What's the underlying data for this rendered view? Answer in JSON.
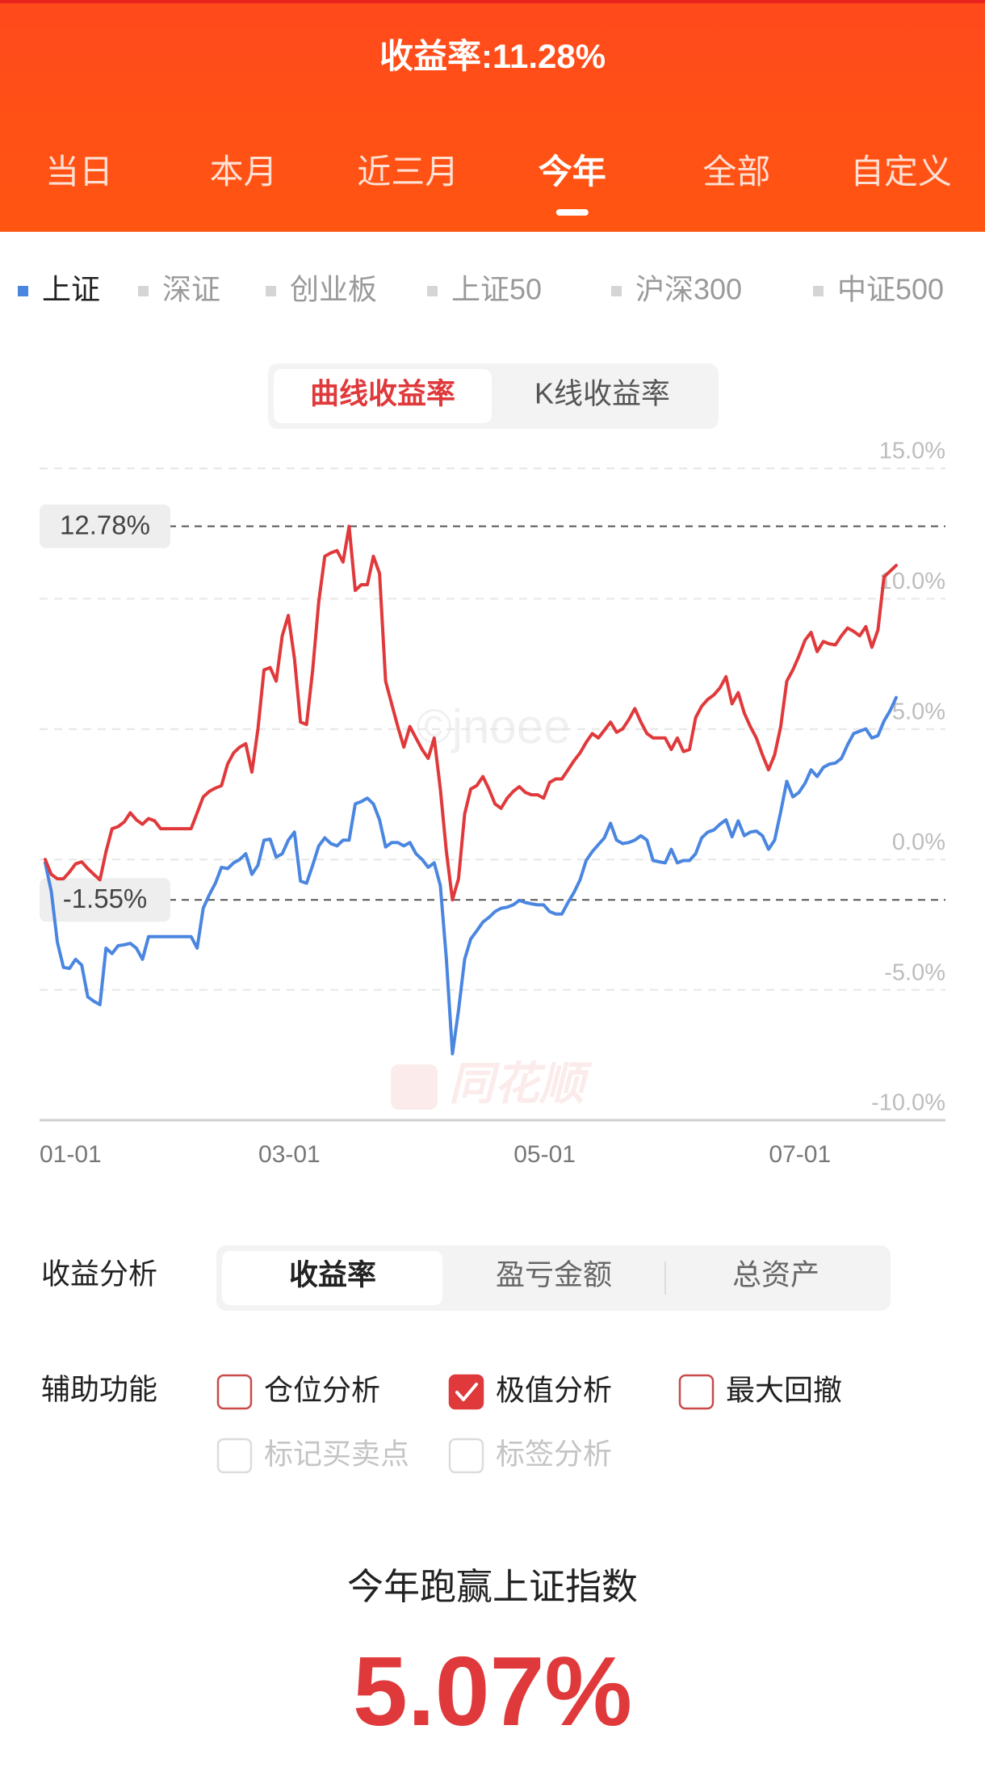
{
  "header": {
    "title": "收益率:11.28%",
    "tabs": [
      {
        "label": "当日",
        "active": false
      },
      {
        "label": "本月",
        "active": false
      },
      {
        "label": "近三月",
        "active": false
      },
      {
        "label": "今年",
        "active": true
      },
      {
        "label": "全部",
        "active": false
      },
      {
        "label": "自定义",
        "active": false
      }
    ]
  },
  "indices": [
    {
      "label": "上证",
      "active": true
    },
    {
      "label": "深证",
      "active": false
    },
    {
      "label": "创业板",
      "active": false
    },
    {
      "label": "上证50",
      "active": false
    },
    {
      "label": "沪深300",
      "active": false
    },
    {
      "label": "中证500",
      "active": false
    }
  ],
  "chart_mode": [
    {
      "label": "曲线收益率",
      "active": true
    },
    {
      "label": "K线收益率",
      "active": false
    }
  ],
  "watermarks": [
    "©jnoee",
    "同花顺"
  ],
  "chart_data": {
    "type": "line",
    "categories": [
      "01-01",
      null,
      null,
      null,
      null,
      null,
      null,
      null,
      null,
      null,
      null,
      null,
      null,
      null,
      null,
      null,
      null,
      null,
      null,
      null,
      null,
      null,
      null,
      null,
      null,
      null,
      null,
      null,
      null,
      null,
      null,
      null,
      null,
      null,
      null,
      null,
      "03-01",
      null,
      null,
      null,
      null,
      null,
      null,
      null,
      null,
      null,
      null,
      null,
      null,
      null,
      null,
      null,
      null,
      null,
      null,
      null,
      null,
      null,
      null,
      null,
      null,
      null,
      null,
      null,
      null,
      null,
      null,
      null,
      null,
      null,
      null,
      null,
      null,
      null,
      null,
      null,
      null,
      null,
      "05-01",
      null,
      null,
      null,
      null,
      null,
      null,
      null,
      null,
      null,
      null,
      null,
      null,
      null,
      null,
      null,
      null,
      null,
      null,
      null,
      null,
      null,
      null,
      null,
      null,
      null,
      null,
      null,
      null,
      null,
      null,
      null,
      null,
      null,
      null,
      null,
      null,
      null,
      null,
      null,
      null,
      null,
      "07-01",
      null,
      null,
      null,
      null,
      null,
      null,
      null,
      null,
      null,
      null,
      null,
      null,
      null,
      null,
      null,
      null,
      null,
      null,
      null,
      null
    ],
    "series": [
      {
        "color": "#e0393b",
        "values": [
          0,
          -0.57,
          -0.74,
          -0.74,
          -0.48,
          -0.17,
          -0.09,
          -0.35,
          -0.57,
          -0.78,
          0.3,
          1.18,
          1.26,
          1.44,
          1.79,
          1.52,
          1.35,
          1.57,
          1.48,
          1.18,
          1.18,
          1.18,
          1.18,
          1.18,
          1.18,
          1.79,
          2.4,
          2.61,
          2.74,
          2.83,
          3.66,
          4.09,
          4.31,
          4.44,
          3.35,
          5.01,
          7.27,
          7.36,
          6.84,
          8.58,
          9.36,
          7.71,
          5.27,
          5.18,
          7.27,
          9.89,
          11.63,
          11.76,
          11.85,
          11.41,
          12.78,
          10.32,
          10.54,
          10.54,
          11.63,
          10.97,
          6.84,
          5.97,
          5.1,
          4.31,
          5.1,
          4.66,
          4.22,
          3.88,
          4.66,
          2.7,
          0.3,
          -1.55,
          -0.74,
          1.74,
          2.7,
          2.83,
          3.18,
          2.7,
          2.13,
          1.96,
          2.35,
          2.61,
          2.79,
          2.57,
          2.48,
          2.48,
          2.35,
          2.96,
          3.09,
          3.09,
          3.44,
          3.79,
          4.09,
          4.49,
          4.83,
          4.66,
          4.96,
          5.27,
          4.88,
          5.01,
          5.36,
          5.79,
          5.27,
          4.83,
          4.66,
          4.66,
          4.66,
          4.22,
          4.66,
          4.14,
          4.22,
          5.44,
          5.88,
          6.14,
          6.31,
          6.58,
          7.01,
          5.97,
          6.4,
          5.62,
          5.1,
          4.66,
          4.01,
          3.44,
          4.01,
          5.1,
          6.84,
          7.27,
          7.8,
          8.41,
          8.71,
          7.97,
          8.36,
          8.27,
          8.23,
          8.58,
          8.88,
          8.75,
          8.58,
          8.93,
          8.14,
          8.8,
          10.84,
          11.06,
          11.28
        ]
      },
      {
        "color": "#4a86e0",
        "values": [
          -0.13,
          -1.22,
          -3.18,
          -4.14,
          -4.18,
          -3.83,
          -4.05,
          -5.27,
          -5.44,
          -5.57,
          -3.4,
          -3.61,
          -3.31,
          -3.27,
          -3.22,
          -3.4,
          -3.83,
          -2.96,
          -2.96,
          -2.96,
          -2.96,
          -2.96,
          -2.96,
          -2.96,
          -2.96,
          -3.4,
          -1.87,
          -1.35,
          -0.91,
          -0.3,
          -0.35,
          -0.13,
          0,
          0.22,
          -0.57,
          -0.22,
          0.74,
          0.78,
          0.09,
          0.22,
          0.74,
          1.05,
          -0.83,
          -0.91,
          -0.22,
          0.52,
          0.83,
          0.61,
          0.52,
          0.74,
          0.74,
          2.13,
          2.22,
          2.35,
          2.13,
          1.52,
          0.48,
          0.65,
          0.65,
          0.52,
          0.65,
          0.22,
          0,
          -0.3,
          -0.13,
          -1.0,
          -3.83,
          -7.45,
          -5.79,
          -3.83,
          -3.05,
          -2.74,
          -2.4,
          -2.22,
          -2.0,
          -1.87,
          -1.83,
          -1.74,
          -1.57,
          -1.65,
          -1.7,
          -1.74,
          -1.74,
          -2.0,
          -2.09,
          -2.09,
          -1.65,
          -1.26,
          -0.78,
          -0.04,
          0.3,
          0.57,
          0.83,
          1.39,
          0.74,
          0.61,
          0.65,
          0.74,
          0.91,
          0.74,
          -0.04,
          -0.09,
          -0.13,
          0.39,
          -0.13,
          -0.04,
          -0.04,
          0.22,
          0.83,
          1.05,
          1.13,
          1.35,
          1.52,
          0.87,
          1.48,
          0.91,
          1.05,
          1.09,
          0.91,
          0.39,
          0.74,
          1.83,
          3.0,
          2.4,
          2.57,
          2.92,
          3.44,
          3.18,
          3.53,
          3.66,
          3.7,
          3.88,
          4.4,
          4.83,
          4.92,
          5.01,
          4.66,
          4.75,
          5.31,
          5.71,
          6.21
        ]
      }
    ],
    "ylim": [
      -10,
      15
    ],
    "yticks": [
      {
        "value": 15,
        "label": "15.0%"
      },
      {
        "value": 10,
        "label": "10.0%"
      },
      {
        "value": 5,
        "label": "5.0%"
      },
      {
        "value": 0,
        "label": "0.0%"
      },
      {
        "value": -5,
        "label": "-5.0%"
      },
      {
        "value": -10,
        "label": "-10.0%"
      }
    ],
    "extremes": [
      {
        "value": 12.78,
        "label": "12.78%"
      },
      {
        "value": -1.55,
        "label": "-1.55%"
      }
    ],
    "grid": true
  },
  "analysis": {
    "label": "收益分析",
    "options": [
      {
        "label": "收益率",
        "active": true
      },
      {
        "label": "盈亏金额",
        "active": false
      },
      {
        "label": "总资产",
        "active": false
      }
    ]
  },
  "aux": {
    "label": "辅助功能",
    "options": [
      {
        "label": "仓位分析",
        "checked": false,
        "enabled": true
      },
      {
        "label": "极值分析",
        "checked": true,
        "enabled": true
      },
      {
        "label": "最大回撤",
        "checked": false,
        "enabled": true
      },
      {
        "label": "标记买卖点",
        "checked": false,
        "enabled": false
      },
      {
        "label": "标签分析",
        "checked": false,
        "enabled": false
      }
    ]
  },
  "summary": {
    "text": "今年跑赢上证指数",
    "value": "5.07%"
  }
}
